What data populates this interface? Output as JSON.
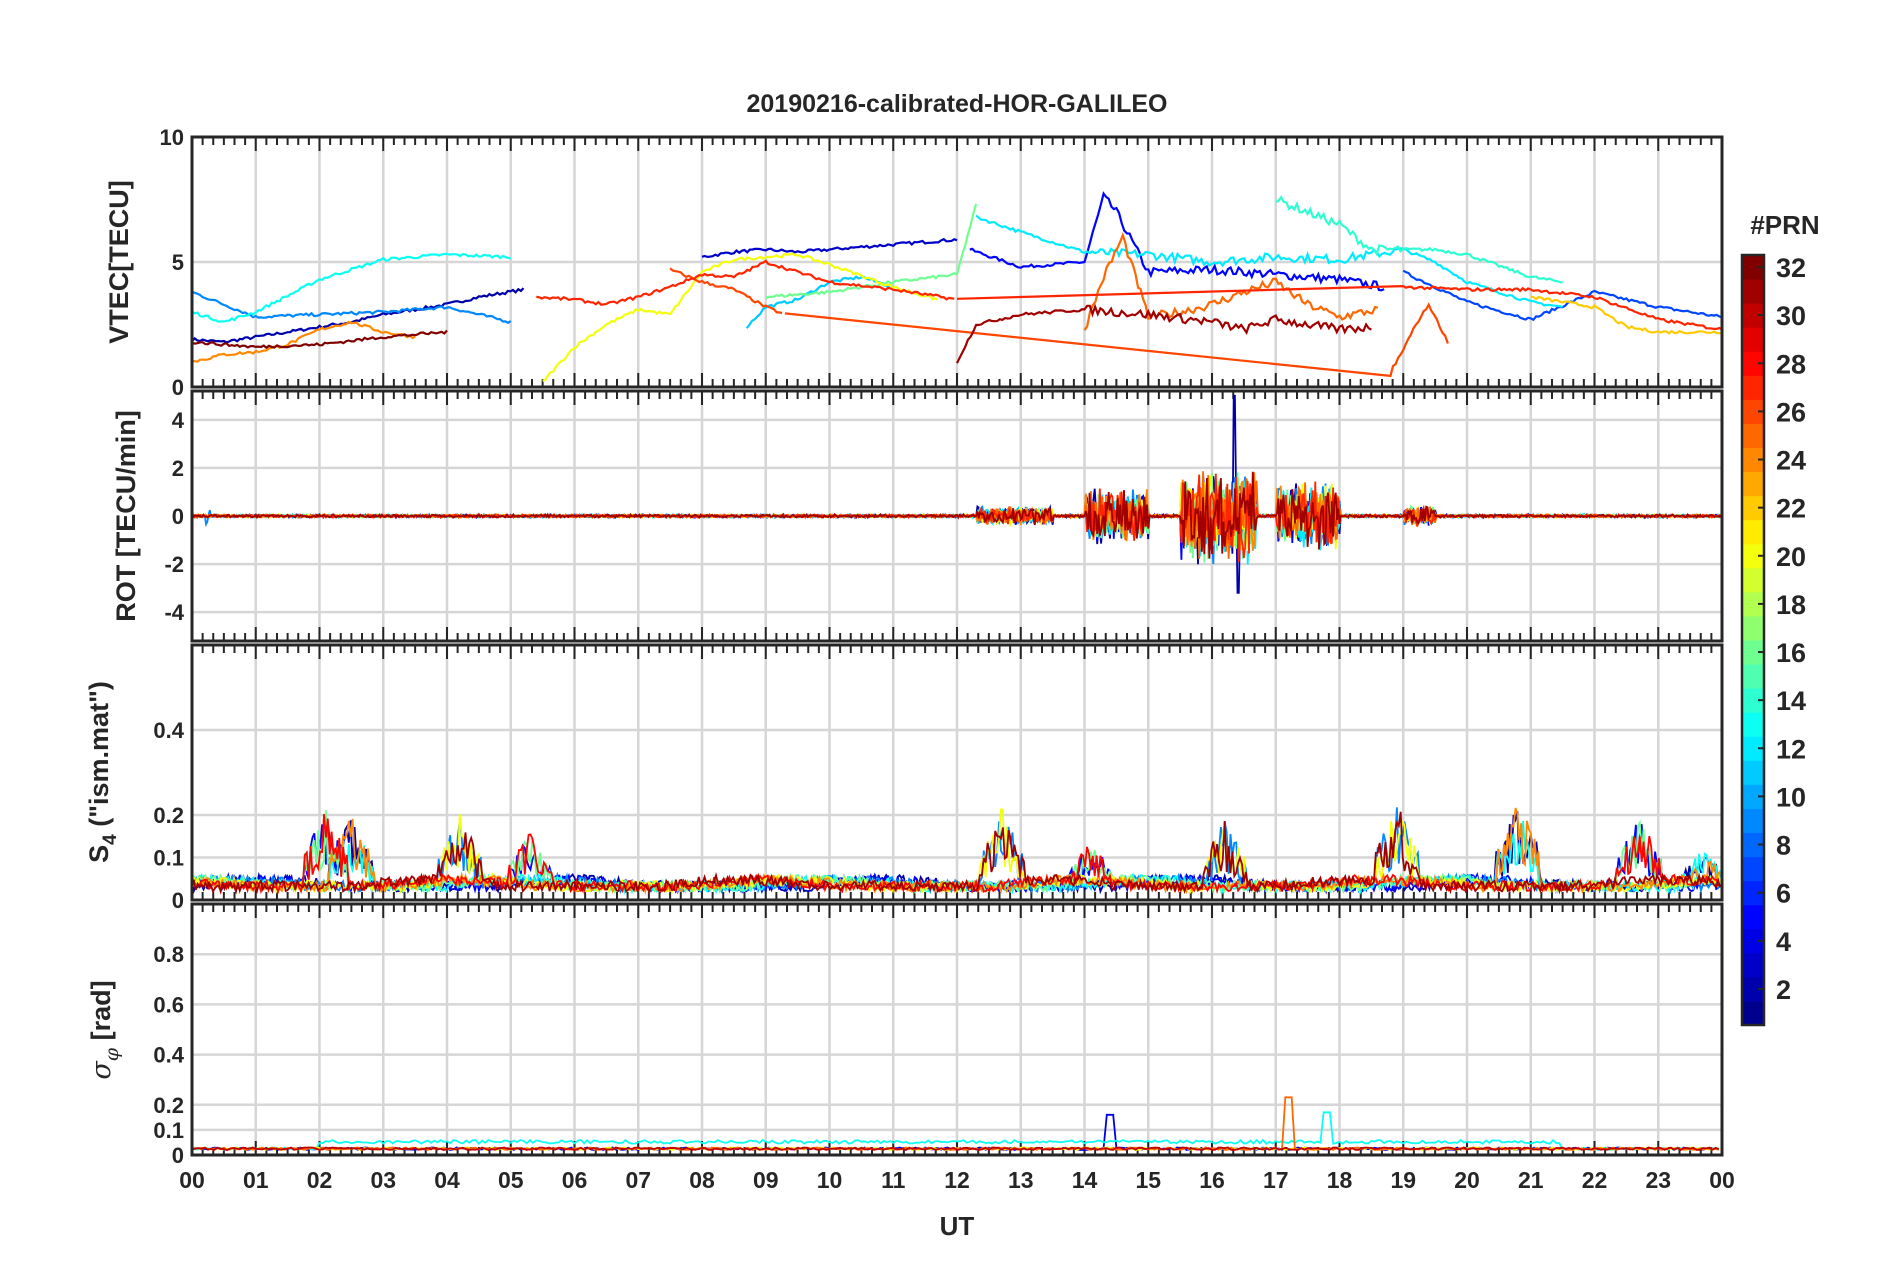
{
  "chart_data": [
    {
      "type": "line",
      "panel": "vtec",
      "title": "20190216-calibrated-HOR-GALILEO",
      "xlabel": "",
      "ylabel": "VTEC[TECU]",
      "ylim": [
        0,
        10
      ],
      "yticks": [
        "0",
        "5",
        "10"
      ],
      "grid": true,
      "series": [
        {
          "name": "PRN 2",
          "prn": 2,
          "x": [
            0,
            0.5,
            1,
            1.5,
            2,
            2.5,
            3,
            3.5,
            4,
            4.5,
            5.2
          ],
          "values": [
            1.9,
            1.8,
            2.0,
            2.2,
            2.4,
            2.6,
            2.9,
            3.1,
            3.3,
            3.6,
            3.9
          ]
        },
        {
          "name": "PRN 3",
          "prn": 3,
          "x": [
            8,
            8.5,
            9,
            9.5,
            10,
            10.5,
            11,
            11.5,
            12
          ],
          "values": [
            5.2,
            5.4,
            5.5,
            5.4,
            5.5,
            5.6,
            5.7,
            5.8,
            5.9
          ]
        },
        {
          "name": "PRN 5",
          "prn": 5,
          "x": [
            12.2,
            13,
            14,
            14.3,
            14.5,
            15,
            16,
            17,
            18,
            18.7
          ],
          "values": [
            5.5,
            4.8,
            5.0,
            7.6,
            7.0,
            4.6,
            4.7,
            4.5,
            4.3,
            4.0
          ]
        },
        {
          "name": "PRN 7",
          "prn": 7,
          "x": [
            19,
            20,
            21,
            22,
            23,
            24
          ],
          "values": [
            4.6,
            3.4,
            2.7,
            3.8,
            3.2,
            2.8
          ]
        },
        {
          "name": "PRN 9",
          "prn": 9,
          "x": [
            0,
            1,
            2,
            3,
            4,
            5
          ],
          "values": [
            3.8,
            2.8,
            2.9,
            3.0,
            3.2,
            2.6
          ]
        },
        {
          "name": "PRN 11",
          "prn": 11,
          "x": [
            8.7,
            9,
            9.5,
            10,
            10.5,
            11
          ],
          "values": [
            2.4,
            3.2,
            3.5,
            4.2,
            4.4,
            4.0
          ]
        },
        {
          "name": "PRN 12",
          "prn": 12,
          "x": [
            12.3,
            13,
            14,
            15,
            16,
            17,
            18,
            19,
            19.5,
            20,
            21,
            21.5
          ],
          "values": [
            6.8,
            6.2,
            5.4,
            5.3,
            5.0,
            5.2,
            5.1,
            5.5,
            5.0,
            4.2,
            3.4,
            3.2
          ]
        },
        {
          "name": "PRN 13",
          "prn": 13,
          "x": [
            0,
            0.5,
            1,
            2,
            3,
            4,
            5
          ],
          "values": [
            3.0,
            2.6,
            3.0,
            4.3,
            5.1,
            5.3,
            5.2
          ]
        },
        {
          "name": "PRN 14",
          "prn": 14,
          "x": [
            17,
            17.5,
            18,
            18.5,
            19.5,
            20,
            21,
            21.5
          ],
          "values": [
            7.5,
            7.0,
            6.5,
            5.5,
            5.5,
            5.3,
            4.4,
            4.2
          ]
        },
        {
          "name": "PRN 16",
          "prn": 16,
          "x": [
            9,
            10,
            11,
            12,
            12.3
          ],
          "values": [
            3.6,
            3.8,
            4.2,
            4.5,
            7.3
          ]
        },
        {
          "name": "PRN 20",
          "prn": 20,
          "x": [
            5.5,
            6,
            6.5,
            7,
            7.5,
            8,
            8.5,
            9,
            9.5,
            10,
            11,
            11.7
          ],
          "values": [
            0.2,
            1.6,
            2.5,
            3.1,
            2.9,
            4.6,
            5.1,
            5.2,
            5.3,
            4.9,
            4.0,
            3.5
          ]
        },
        {
          "name": "PRN 22",
          "prn": 22,
          "x": [
            21,
            22,
            22.5,
            23,
            24
          ],
          "values": [
            3.6,
            3.2,
            2.4,
            2.2,
            2.2
          ]
        },
        {
          "name": "PRN 24",
          "prn": 24,
          "x": [
            0,
            0.5,
            1,
            1.5,
            2,
            2.5,
            3,
            3.5
          ],
          "values": [
            1.0,
            1.3,
            1.4,
            1.7,
            2.3,
            2.6,
            2.2,
            2.0
          ]
        },
        {
          "name": "PRN 25",
          "prn": 25,
          "x": [
            14,
            14.3,
            14.6,
            15,
            15.5,
            16,
            16.5,
            17,
            17.5,
            18,
            18.6
          ],
          "values": [
            2.3,
            4.4,
            6.0,
            2.8,
            3.0,
            3.3,
            3.8,
            4.2,
            3.3,
            2.8,
            3.1
          ]
        },
        {
          "name": "PRN 26",
          "prn": 26,
          "x": [
            7.5,
            8,
            8.5,
            9,
            9.3,
            18.8,
            19.2,
            19.4,
            19.7
          ],
          "values": [
            4.7,
            4.2,
            3.9,
            3.2,
            2.9,
            0.5,
            2.5,
            3.3,
            1.8
          ]
        },
        {
          "name": "PRN 27",
          "prn": 27,
          "x": [
            5.4,
            6,
            6.5,
            7,
            7.5,
            8,
            8.5,
            9,
            10,
            11,
            12,
            19,
            20,
            21,
            22,
            23,
            24
          ],
          "values": [
            3.6,
            3.5,
            3.3,
            3.6,
            4.0,
            4.5,
            4.4,
            5.0,
            4.2,
            3.9,
            3.5,
            4.0,
            3.9,
            3.9,
            3.6,
            2.7,
            2.3
          ]
        },
        {
          "name": "PRN 31",
          "prn": 31,
          "x": [
            12,
            12.3,
            13,
            14,
            15,
            16,
            16.5,
            17,
            18,
            18.5
          ],
          "values": [
            1.0,
            2.5,
            2.9,
            3.1,
            2.9,
            2.6,
            2.3,
            2.7,
            2.3,
            2.4
          ]
        },
        {
          "name": "PRN 32",
          "prn": 32,
          "x": [
            0,
            1,
            2,
            3,
            4
          ],
          "values": [
            1.8,
            1.6,
            1.7,
            2.0,
            2.2
          ]
        }
      ]
    },
    {
      "type": "line",
      "panel": "rot",
      "xlabel": "",
      "ylabel": "ROT [TECU/min]",
      "ylim": [
        -5.2,
        5.2
      ],
      "yticks": [
        "-4",
        "-2",
        "0",
        "2",
        "4"
      ],
      "grid": true,
      "series_note": "ROT near 0 all day; strong fluctuations 14-15 UT and 15.5-18 UT",
      "bursts": [
        {
          "x": [
            12.3,
            13.5
          ],
          "amplitude": 0.7
        },
        {
          "x": [
            14.0,
            15.0
          ],
          "amplitude": 2.1
        },
        {
          "x": [
            15.5,
            16.7
          ],
          "amplitude": 3.5
        },
        {
          "x": [
            17.0,
            18.0
          ],
          "amplitude": 2.5
        },
        {
          "x": [
            19.0,
            19.5
          ],
          "amplitude": 0.8
        }
      ],
      "extremes": {
        "max": 5.0,
        "max_x": 16.35,
        "min": -3.2,
        "min_x": 16.4
      }
    },
    {
      "type": "line",
      "panel": "s4",
      "xlabel": "",
      "ylabel": "S4 (\"ism.mat\")",
      "ylim": [
        0,
        0.6
      ],
      "yticks": [
        "0",
        "0.1",
        "0.2",
        "0.4"
      ],
      "grid": true,
      "peaks": [
        {
          "x": 2.1,
          "value": 0.22
        },
        {
          "x": 2.5,
          "value": 0.2
        },
        {
          "x": 4.2,
          "value": 0.21
        },
        {
          "x": 5.3,
          "value": 0.16
        },
        {
          "x": 12.7,
          "value": 0.22
        },
        {
          "x": 14.1,
          "value": 0.14
        },
        {
          "x": 16.2,
          "value": 0.19
        },
        {
          "x": 18.9,
          "value": 0.23
        },
        {
          "x": 20.8,
          "value": 0.24
        },
        {
          "x": 22.7,
          "value": 0.2
        },
        {
          "x": 23.7,
          "value": 0.12
        }
      ]
    },
    {
      "type": "line",
      "panel": "sigma_phi",
      "xlabel": "UT",
      "ylabel": "σφ [rad]",
      "ylim": [
        0,
        1
      ],
      "yticks": [
        "0",
        "0.1",
        "0.2",
        "0.4",
        "0.6",
        "0.8"
      ],
      "xticks": [
        "00",
        "01",
        "02",
        "03",
        "04",
        "05",
        "06",
        "07",
        "08",
        "09",
        "10",
        "11",
        "12",
        "13",
        "14",
        "15",
        "16",
        "17",
        "18",
        "19",
        "20",
        "21",
        "22",
        "23",
        "00"
      ],
      "xlim": [
        0,
        24
      ],
      "grid": true,
      "peaks": [
        {
          "x": 14.4,
          "value": 0.16
        },
        {
          "x": 17.2,
          "value": 0.23
        },
        {
          "x": 17.8,
          "value": 0.17
        }
      ]
    }
  ],
  "colorbar": {
    "title": "#PRN",
    "range": [
      1,
      32
    ],
    "ticks": [
      "2",
      "4",
      "6",
      "8",
      "10",
      "12",
      "14",
      "16",
      "18",
      "20",
      "22",
      "24",
      "26",
      "28",
      "30",
      "32"
    ],
    "colormap": "jet",
    "colors": [
      "#00008f",
      "#0000ff",
      "#0080ff",
      "#00ffff",
      "#80ff80",
      "#ffff00",
      "#ff8000",
      "#ff0000",
      "#800000"
    ]
  }
}
